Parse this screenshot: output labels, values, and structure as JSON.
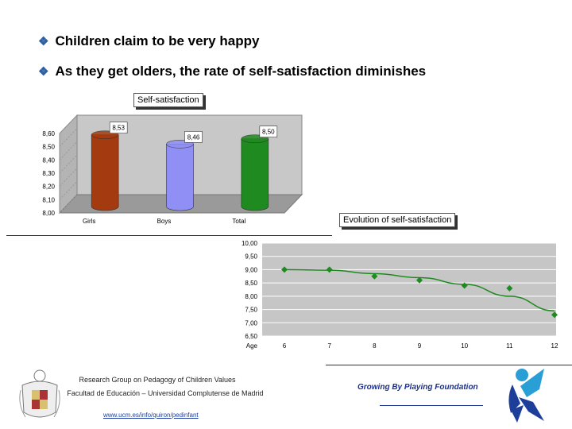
{
  "bullets": [
    {
      "text": "Children claim to be very happy"
    },
    {
      "text": "As they get olders, the rate of self-satisfaction diminishes"
    }
  ],
  "chart_data": [
    {
      "type": "bar",
      "title": "Self-satisfaction",
      "categories": [
        "Girls",
        "Boys",
        "Total"
      ],
      "values": [
        8.53,
        8.46,
        8.5
      ],
      "data_labels": [
        "8,53",
        "8,46",
        "8,50"
      ],
      "yticks": [
        "8,00",
        "8,10",
        "8,20",
        "8,30",
        "8,40",
        "8,50",
        "8,60"
      ],
      "ylim": [
        8.0,
        8.6
      ],
      "colors": [
        "#a33a10",
        "#8f8ff5",
        "#1f8a1f"
      ]
    },
    {
      "type": "line",
      "title": "Evolution of self-satisfaction",
      "xlabel": "Age",
      "x": [
        "6",
        "7",
        "8",
        "9",
        "10",
        "11",
        "12"
      ],
      "values": [
        9.0,
        9.0,
        8.75,
        8.6,
        8.4,
        8.3,
        7.3
      ],
      "trend": [
        9.0,
        8.98,
        8.85,
        8.7,
        8.45,
        8.0,
        7.45
      ],
      "yticks": [
        "6,50",
        "7,00",
        "7,50",
        "8,00",
        "8,50",
        "9,00",
        "9,50",
        "10,00"
      ],
      "ylim": [
        6.5,
        10.0
      ],
      "color": "#1f8a1f"
    }
  ],
  "footer": {
    "group": "Research Group on Pedagogy of Children Values",
    "faculty": "Facultad de Educación – Universidad Complutense de Madrid",
    "url": "www.ucm.es/info/quiron/pedinfant",
    "foundation": "Growing By Playing Foundation"
  }
}
